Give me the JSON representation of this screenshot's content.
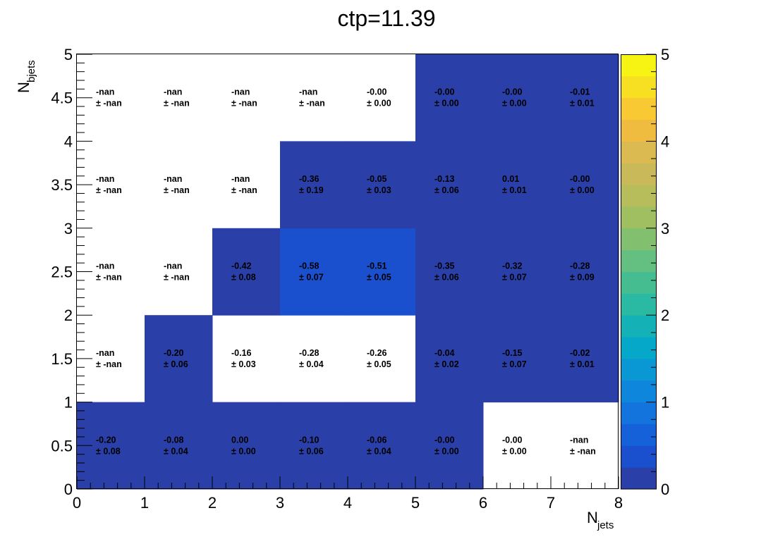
{
  "chart_data": {
    "type": "heatmap",
    "title": "ctp=11.39",
    "xlabel": {
      "main": "N",
      "sub": "jets"
    },
    "ylabel": {
      "main": "N",
      "sub": "bjets"
    },
    "xlim": [
      0,
      8
    ],
    "ylim": [
      0,
      5
    ],
    "zlim": [
      0,
      5
    ],
    "x_ticks": [
      "0",
      "1",
      "2",
      "3",
      "4",
      "5",
      "6",
      "7",
      "8"
    ],
    "y_ticks": [
      "0",
      "0.5",
      "1",
      "1.5",
      "2",
      "2.5",
      "3",
      "3.5",
      "4",
      "4.5",
      "5"
    ],
    "z_ticks": [
      "0",
      "1",
      "2",
      "3",
      "4",
      "5"
    ],
    "palette": [
      "#2a3fa8",
      "#1a4fce",
      "#1461d9",
      "#1474de",
      "#0d86dc",
      "#0998d3",
      "#06a8c9",
      "#14b2b6",
      "#2ab9a3",
      "#46bd90",
      "#64c080",
      "#82c070",
      "#a0bf60",
      "#b6bd5a",
      "#cab958",
      "#dcba52",
      "#efbc40",
      "#f8c933",
      "#f6e021",
      "#f7f414"
    ],
    "cells": [
      {
        "x": 0,
        "y": 0,
        "value": "-0.20",
        "error": "± 0.08",
        "z": -0.2
      },
      {
        "x": 1,
        "y": 0,
        "value": "-0.08",
        "error": "± 0.04",
        "z": -0.08
      },
      {
        "x": 2,
        "y": 0,
        "value": "0.00",
        "error": "± 0.00",
        "z": 0.0
      },
      {
        "x": 3,
        "y": 0,
        "value": "-0.10",
        "error": "± 0.06",
        "z": -0.1
      },
      {
        "x": 4,
        "y": 0,
        "value": "-0.06",
        "error": "± 0.04",
        "z": -0.06
      },
      {
        "x": 5,
        "y": 0,
        "value": "-0.00",
        "error": "± 0.00",
        "z": -0.0
      },
      {
        "x": 6,
        "y": 0,
        "value": "-0.00",
        "error": "± 0.00",
        "z": null
      },
      {
        "x": 7,
        "y": 0,
        "value": "-nan",
        "error": "± -nan",
        "z": null
      },
      {
        "x": 0,
        "y": 1,
        "value": "-nan",
        "error": "± -nan",
        "z": null
      },
      {
        "x": 1,
        "y": 1,
        "value": "-0.20",
        "error": "± 0.06",
        "z": -0.2
      },
      {
        "x": 2,
        "y": 1,
        "value": "-0.16",
        "error": "± 0.03",
        "z": null
      },
      {
        "x": 3,
        "y": 1,
        "value": "-0.28",
        "error": "± 0.04",
        "z": null
      },
      {
        "x": 4,
        "y": 1,
        "value": "-0.26",
        "error": "± 0.05",
        "z": null
      },
      {
        "x": 5,
        "y": 1,
        "value": "-0.04",
        "error": "± 0.02",
        "z": -0.04
      },
      {
        "x": 6,
        "y": 1,
        "value": "-0.15",
        "error": "± 0.07",
        "z": -0.15
      },
      {
        "x": 7,
        "y": 1,
        "value": "-0.02",
        "error": "± 0.01",
        "z": -0.02
      },
      {
        "x": 0,
        "y": 2,
        "value": "-nan",
        "error": "± -nan",
        "z": null
      },
      {
        "x": 1,
        "y": 2,
        "value": "-nan",
        "error": "± -nan",
        "z": null
      },
      {
        "x": 2,
        "y": 2,
        "value": "-0.42",
        "error": "± 0.08",
        "z": 0.08
      },
      {
        "x": 3,
        "y": 2,
        "value": "-0.58",
        "error": "± 0.07",
        "z": 0.32
      },
      {
        "x": 4,
        "y": 2,
        "value": "-0.51",
        "error": "± 0.05",
        "z": 0.32
      },
      {
        "x": 5,
        "y": 2,
        "value": "-0.35",
        "error": "± 0.06",
        "z": 0.08
      },
      {
        "x": 6,
        "y": 2,
        "value": "-0.32",
        "error": "± 0.07",
        "z": 0.08
      },
      {
        "x": 7,
        "y": 2,
        "value": "-0.28",
        "error": "± 0.09",
        "z": 0.08
      },
      {
        "x": 0,
        "y": 3,
        "value": "-nan",
        "error": "± -nan",
        "z": null
      },
      {
        "x": 1,
        "y": 3,
        "value": "-nan",
        "error": "± -nan",
        "z": null
      },
      {
        "x": 2,
        "y": 3,
        "value": "-nan",
        "error": "± -nan",
        "z": null
      },
      {
        "x": 3,
        "y": 3,
        "value": "-0.36",
        "error": "± 0.19",
        "z": 0.2
      },
      {
        "x": 4,
        "y": 3,
        "value": "-0.05",
        "error": "± 0.03",
        "z": -0.05
      },
      {
        "x": 5,
        "y": 3,
        "value": "-0.13",
        "error": "± 0.06",
        "z": -0.13
      },
      {
        "x": 6,
        "y": 3,
        "value": "0.01",
        "error": "± 0.01",
        "z": 0.01
      },
      {
        "x": 7,
        "y": 3,
        "value": "-0.00",
        "error": "± 0.00",
        "z": -0.0
      },
      {
        "x": 0,
        "y": 4,
        "value": "-nan",
        "error": "± -nan",
        "z": null
      },
      {
        "x": 1,
        "y": 4,
        "value": "-nan",
        "error": "± -nan",
        "z": null
      },
      {
        "x": 2,
        "y": 4,
        "value": "-nan",
        "error": "± -nan",
        "z": null
      },
      {
        "x": 3,
        "y": 4,
        "value": "-nan",
        "error": "± -nan",
        "z": null
      },
      {
        "x": 4,
        "y": 4,
        "value": "-0.00",
        "error": "± 0.00",
        "z": null
      },
      {
        "x": 5,
        "y": 4,
        "value": "-0.00",
        "error": "± 0.00",
        "z": -0.0
      },
      {
        "x": 6,
        "y": 4,
        "value": "-0.00",
        "error": "± 0.00",
        "z": -0.0
      },
      {
        "x": 7,
        "y": 4,
        "value": "-0.01",
        "error": "± 0.01",
        "z": -0.01
      }
    ]
  }
}
